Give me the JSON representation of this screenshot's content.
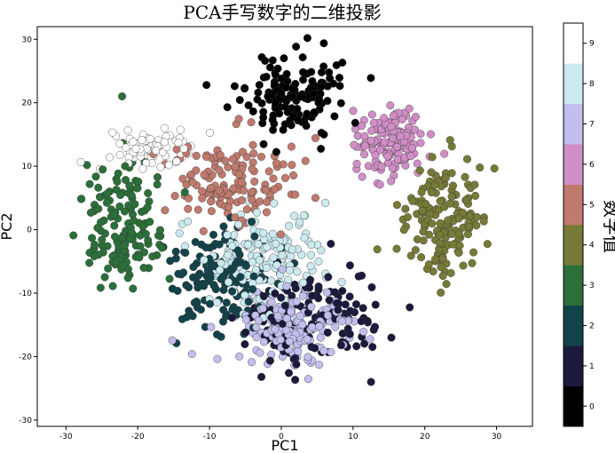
{
  "chart_data": {
    "type": "scatter",
    "title": "PCA手写数字的二维投影",
    "xlabel": "PC1",
    "ylabel": "PC2",
    "xlim": [
      -34,
      35
    ],
    "ylim": [
      -31,
      32
    ],
    "xticks": [
      -30,
      -20,
      -10,
      0,
      10,
      20,
      30
    ],
    "yticks": [
      -30,
      -20,
      -10,
      0,
      10,
      20,
      30
    ],
    "grid": false,
    "colorbar": {
      "label": "数字值",
      "ticks": [
        "0",
        "1",
        "2",
        "3",
        "4",
        "5",
        "6",
        "7",
        "8",
        "9"
      ],
      "colors": [
        "#000000",
        "#1b1a3d",
        "#13434a",
        "#2b6f39",
        "#767a36",
        "#bf7a6d",
        "#d08ec6",
        "#c2bfee",
        "#cbeaef",
        "#ffffff"
      ]
    },
    "clusters": [
      {
        "digit": 0,
        "center": [
          1.5,
          21.5
        ],
        "spread": [
          5.5,
          5.0
        ],
        "count": 150
      },
      {
        "digit": 1,
        "center": [
          5.0,
          -14.0
        ],
        "spread": [
          8.5,
          6.5
        ],
        "count": 140
      },
      {
        "digit": 2,
        "center": [
          -8.5,
          -7.0
        ],
        "spread": [
          5.5,
          6.5
        ],
        "count": 150
      },
      {
        "digit": 3,
        "center": [
          -21.5,
          0.5
        ],
        "spread": [
          4.5,
          8.5
        ],
        "count": 150
      },
      {
        "digit": 4,
        "center": [
          22.5,
          1.0
        ],
        "spread": [
          4.5,
          7.5
        ],
        "count": 160
      },
      {
        "digit": 5,
        "center": [
          -7.0,
          7.5
        ],
        "spread": [
          6.5,
          6.0
        ],
        "count": 140
      },
      {
        "digit": 6,
        "center": [
          15.5,
          14.0
        ],
        "spread": [
          4.0,
          4.5
        ],
        "count": 150
      },
      {
        "digit": 7,
        "center": [
          1.5,
          -15.0
        ],
        "spread": [
          6.5,
          4.5
        ],
        "count": 170
      },
      {
        "digit": 8,
        "center": [
          -2.0,
          -5.0
        ],
        "spread": [
          7.0,
          6.0
        ],
        "count": 160
      },
      {
        "digit": 9,
        "center": [
          -18.0,
          12.5
        ],
        "spread": [
          5.0,
          3.0
        ],
        "count": 70
      }
    ]
  }
}
